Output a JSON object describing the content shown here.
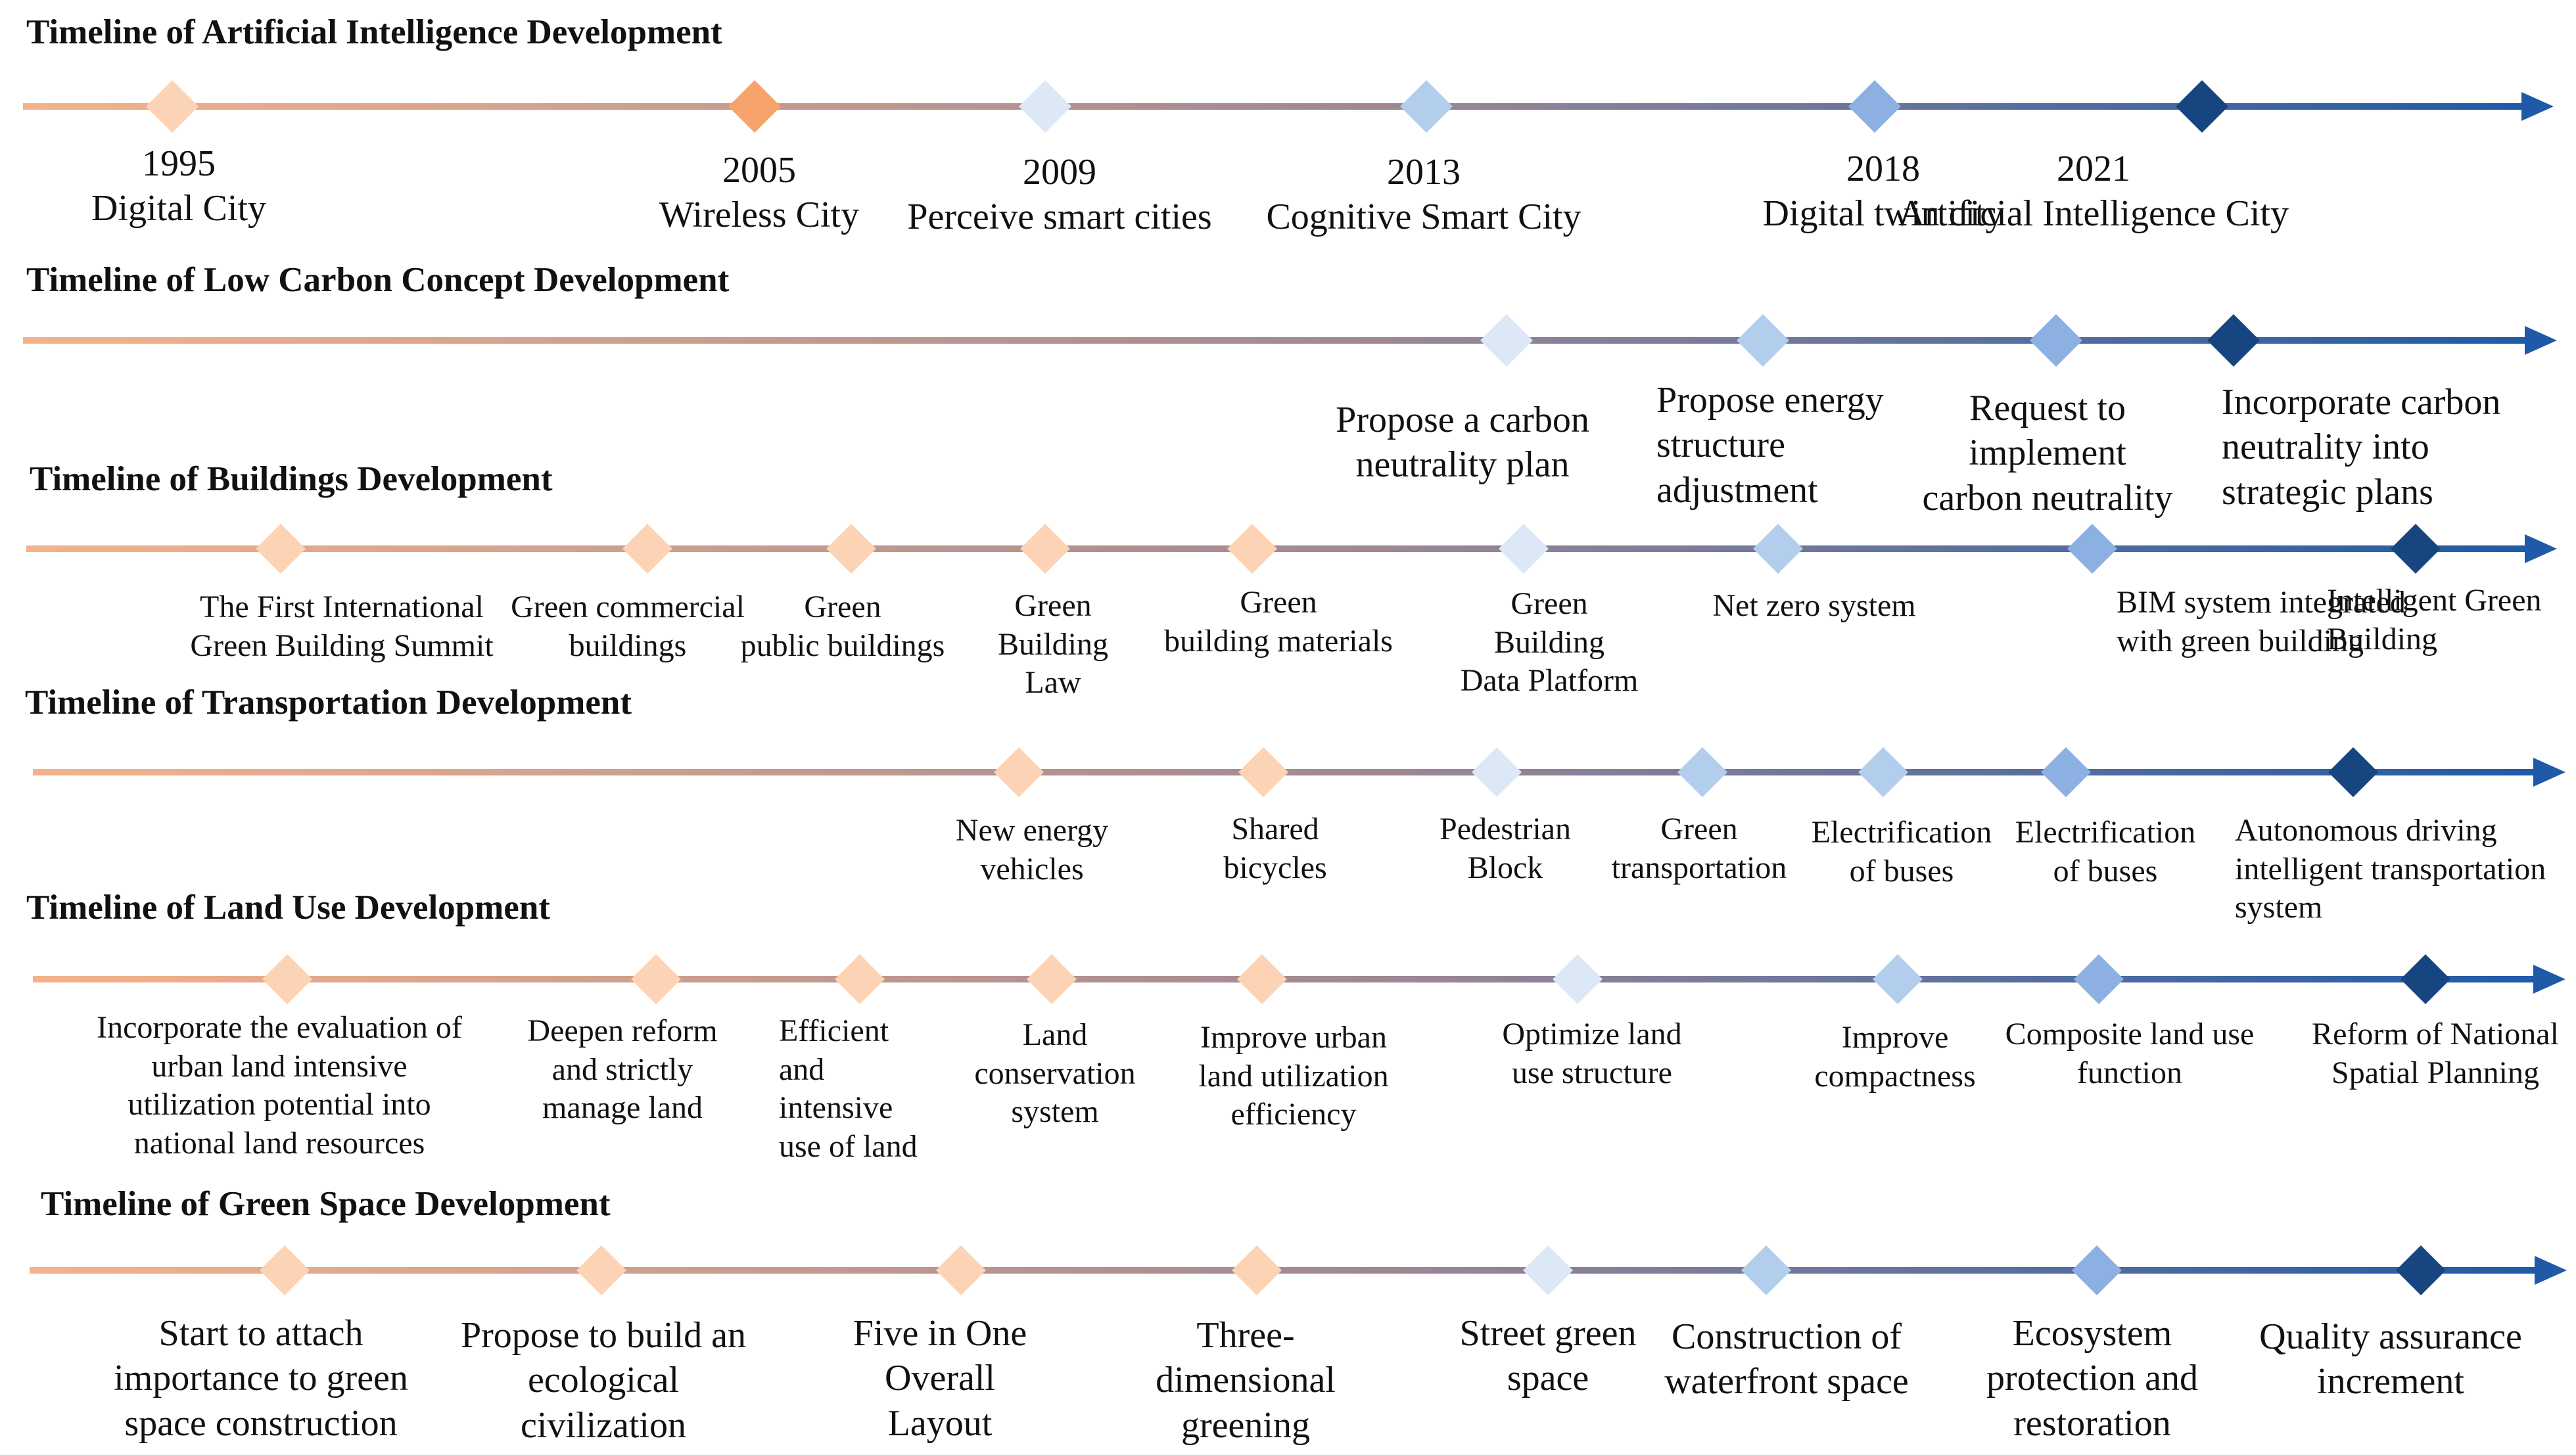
{
  "colors": {
    "line_start": "#f5b28a",
    "line_mid": "#9c8794",
    "line_end": "#1f5aa8",
    "marker_light_orange": "#fcd3b4",
    "marker_orange": "#f7a46c",
    "marker_pale_blue": "#dde8f6",
    "marker_light_blue": "#b3cdec",
    "marker_mid_blue": "#8db0e3",
    "marker_dark_blue": "#17457f"
  },
  "timelines": [
    {
      "title": "Timeline of Artificial Intelligence Development",
      "events": [
        {
          "year": "1995",
          "lines": [
            "Digital City"
          ],
          "color": "marker_light_orange"
        },
        {
          "year": "2005",
          "lines": [
            "Wireless City"
          ],
          "color": "marker_orange"
        },
        {
          "year": "2009",
          "lines": [
            "Perceive smart cities"
          ],
          "color": "marker_pale_blue"
        },
        {
          "year": "2013",
          "lines": [
            "Cognitive Smart City"
          ],
          "color": "marker_light_blue"
        },
        {
          "year": "2018",
          "lines": [
            "Digital twin city"
          ],
          "color": "marker_mid_blue"
        },
        {
          "year": "2021",
          "lines": [
            "Artificial Intelligence City"
          ],
          "color": "marker_dark_blue"
        }
      ]
    },
    {
      "title": "Timeline of Low Carbon Concept Development",
      "events": [
        {
          "lines": [
            "Propose a carbon",
            "neutrality plan"
          ],
          "color": "marker_pale_blue"
        },
        {
          "lines": [
            "Propose energy",
            "structure",
            "adjustment"
          ],
          "color": "marker_light_blue"
        },
        {
          "lines": [
            "Request to",
            "implement",
            "carbon neutrality"
          ],
          "color": "marker_mid_blue"
        },
        {
          "lines": [
            "Incorporate carbon",
            "neutrality into",
            "strategic plans"
          ],
          "color": "marker_dark_blue"
        }
      ]
    },
    {
      "title": "Timeline of Buildings Development",
      "events": [
        {
          "lines": [
            "The First International",
            "Green Building Summit"
          ],
          "color": "marker_light_orange"
        },
        {
          "lines": [
            "Green commercial",
            "buildings"
          ],
          "color": "marker_light_orange"
        },
        {
          "lines": [
            "Green",
            "public buildings"
          ],
          "color": "marker_light_orange"
        },
        {
          "lines": [
            "Green",
            "Building",
            "Law"
          ],
          "color": "marker_light_orange"
        },
        {
          "lines": [
            "Green",
            "building materials"
          ],
          "color": "marker_light_orange"
        },
        {
          "lines": [
            "Green",
            "Building",
            "Data Platform"
          ],
          "color": "marker_pale_blue"
        },
        {
          "lines": [
            "Net zero system"
          ],
          "color": "marker_light_blue"
        },
        {
          "lines": [
            "BIM system integrated",
            "with green building"
          ],
          "color": "marker_mid_blue"
        },
        {
          "lines": [
            "Intelligent Green",
            "Building"
          ],
          "color": "marker_dark_blue"
        }
      ]
    },
    {
      "title": "Timeline of Transportation Development",
      "events": [
        {
          "lines": [
            "New energy",
            "vehicles"
          ],
          "color": "marker_light_orange"
        },
        {
          "lines": [
            "Shared",
            "bicycles"
          ],
          "color": "marker_light_orange"
        },
        {
          "lines": [
            "Pedestrian",
            "Block"
          ],
          "color": "marker_pale_blue"
        },
        {
          "lines": [
            "Green",
            "transportation"
          ],
          "color": "marker_light_blue"
        },
        {
          "lines": [
            "Electrification",
            "of buses"
          ],
          "color": "marker_light_blue"
        },
        {
          "lines": [
            "Electrification",
            "of buses"
          ],
          "color": "marker_mid_blue"
        },
        {
          "lines": [
            "Autonomous driving",
            "intelligent transportation",
            "system"
          ],
          "color": "marker_dark_blue"
        }
      ]
    },
    {
      "title": "Timeline of Land Use Development",
      "events": [
        {
          "lines": [
            "Incorporate the evaluation of",
            "urban land intensive",
            "utilization potential into",
            "national land resources"
          ],
          "color": "marker_light_orange"
        },
        {
          "lines": [
            "Deepen reform",
            "and strictly",
            "manage land"
          ],
          "color": "marker_light_orange"
        },
        {
          "lines": [
            "Efficient",
            "and",
            "intensive",
            "use of land"
          ],
          "color": "marker_light_orange"
        },
        {
          "lines": [
            "Land",
            "conservation",
            "system"
          ],
          "color": "marker_light_orange"
        },
        {
          "lines": [
            "Improve urban",
            "land utilization",
            "efficiency"
          ],
          "color": "marker_light_orange"
        },
        {
          "lines": [
            "Optimize land",
            "use structure"
          ],
          "color": "marker_pale_blue"
        },
        {
          "lines": [
            "Improve",
            "compactness"
          ],
          "color": "marker_light_blue"
        },
        {
          "lines": [
            "Composite land use",
            "function"
          ],
          "color": "marker_mid_blue"
        },
        {
          "lines": [
            "Reform of National",
            "Spatial Planning"
          ],
          "color": "marker_dark_blue"
        }
      ]
    },
    {
      "title": "Timeline of Green Space Development",
      "events": [
        {
          "lines": [
            "Start to attach",
            "importance to green",
            "space construction"
          ],
          "color": "marker_light_orange"
        },
        {
          "lines": [
            "Propose to build an",
            "ecological",
            "civilization"
          ],
          "color": "marker_light_orange"
        },
        {
          "lines": [
            "Five in One",
            "Overall",
            "Layout"
          ],
          "color": "marker_light_orange"
        },
        {
          "lines": [
            "Three-",
            "dimensional",
            "greening"
          ],
          "color": "marker_light_orange"
        },
        {
          "lines": [
            "Street green",
            "space"
          ],
          "color": "marker_pale_blue"
        },
        {
          "lines": [
            "Construction of",
            "waterfront space"
          ],
          "color": "marker_light_blue"
        },
        {
          "lines": [
            "Ecosystem",
            "protection and",
            "restoration"
          ],
          "color": "marker_mid_blue"
        },
        {
          "lines": [
            "Quality assurance",
            "increment"
          ],
          "color": "marker_dark_blue"
        }
      ]
    }
  ]
}
